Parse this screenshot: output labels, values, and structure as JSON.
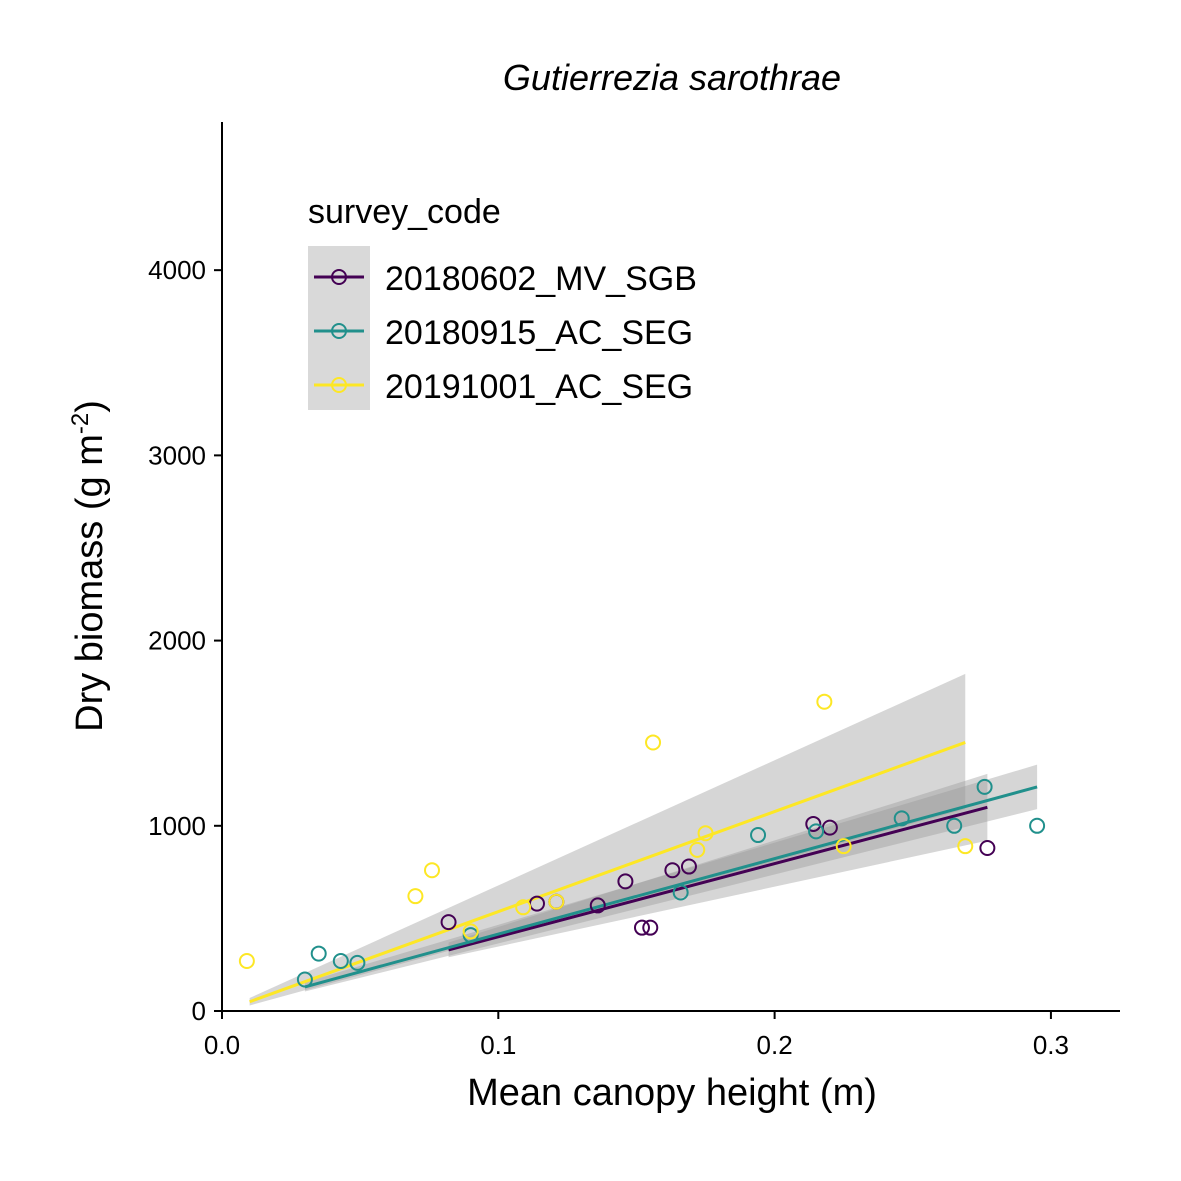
{
  "chart_data": {
    "type": "scatter",
    "title": "Gutierrezia sarothrae",
    "xlabel": "Mean canopy height (m)",
    "ylabel_main": "Dry biomass (g m",
    "ylabel_sup": "-2",
    "ylabel_close": ")",
    "xlim": [
      0,
      0.325
    ],
    "ylim": [
      0,
      4800
    ],
    "xticks": [
      0.0,
      0.1,
      0.2,
      0.3
    ],
    "xtick_labels": [
      "0.0",
      "0.1",
      "0.2",
      "0.3"
    ],
    "yticks": [
      0,
      1000,
      2000,
      3000,
      4000
    ],
    "ytick_labels": [
      "0",
      "1000",
      "2000",
      "3000",
      "4000"
    ],
    "grid": false,
    "legend": {
      "title": "survey_code",
      "position": "top-left"
    },
    "series": [
      {
        "name": "20180602_MV_SGB",
        "color": "#440154",
        "points": [
          [
            0.082,
            480
          ],
          [
            0.114,
            580
          ],
          [
            0.121,
            590
          ],
          [
            0.136,
            570
          ],
          [
            0.146,
            700
          ],
          [
            0.152,
            450
          ],
          [
            0.155,
            450
          ],
          [
            0.163,
            760
          ],
          [
            0.169,
            780
          ],
          [
            0.214,
            1010
          ],
          [
            0.22,
            990
          ],
          [
            0.277,
            880
          ]
        ],
        "fit": {
          "x": [
            0.082,
            0.277
          ],
          "y": [
            330,
            1100
          ],
          "ci_lower": [
            290,
            920
          ],
          "ci_upper": [
            370,
            1280
          ]
        }
      },
      {
        "name": "20180915_AC_SEG",
        "color": "#21908C",
        "points": [
          [
            0.03,
            170
          ],
          [
            0.035,
            310
          ],
          [
            0.043,
            270
          ],
          [
            0.049,
            260
          ],
          [
            0.09,
            410
          ],
          [
            0.166,
            640
          ],
          [
            0.194,
            950
          ],
          [
            0.215,
            970
          ],
          [
            0.246,
            1040
          ],
          [
            0.265,
            1000
          ],
          [
            0.276,
            1210
          ],
          [
            0.295,
            1000
          ]
        ],
        "fit": {
          "x": [
            0.03,
            0.295
          ],
          "y": [
            130,
            1210
          ],
          "ci_lower": [
            105,
            1090
          ],
          "ci_upper": [
            155,
            1330
          ]
        }
      },
      {
        "name": "20191001_AC_SEG",
        "color": "#FDE725",
        "points": [
          [
            0.009,
            270
          ],
          [
            0.07,
            620
          ],
          [
            0.076,
            760
          ],
          [
            0.09,
            430
          ],
          [
            0.109,
            560
          ],
          [
            0.121,
            590
          ],
          [
            0.156,
            1450
          ],
          [
            0.172,
            870
          ],
          [
            0.175,
            960
          ],
          [
            0.218,
            1670
          ],
          [
            0.225,
            890
          ],
          [
            0.269,
            890
          ]
        ],
        "fit": {
          "x": [
            0.01,
            0.269
          ],
          "y": [
            50,
            1450
          ],
          "ci_lower": [
            30,
            1090
          ],
          "ci_upper": [
            70,
            1820
          ]
        }
      }
    ]
  }
}
